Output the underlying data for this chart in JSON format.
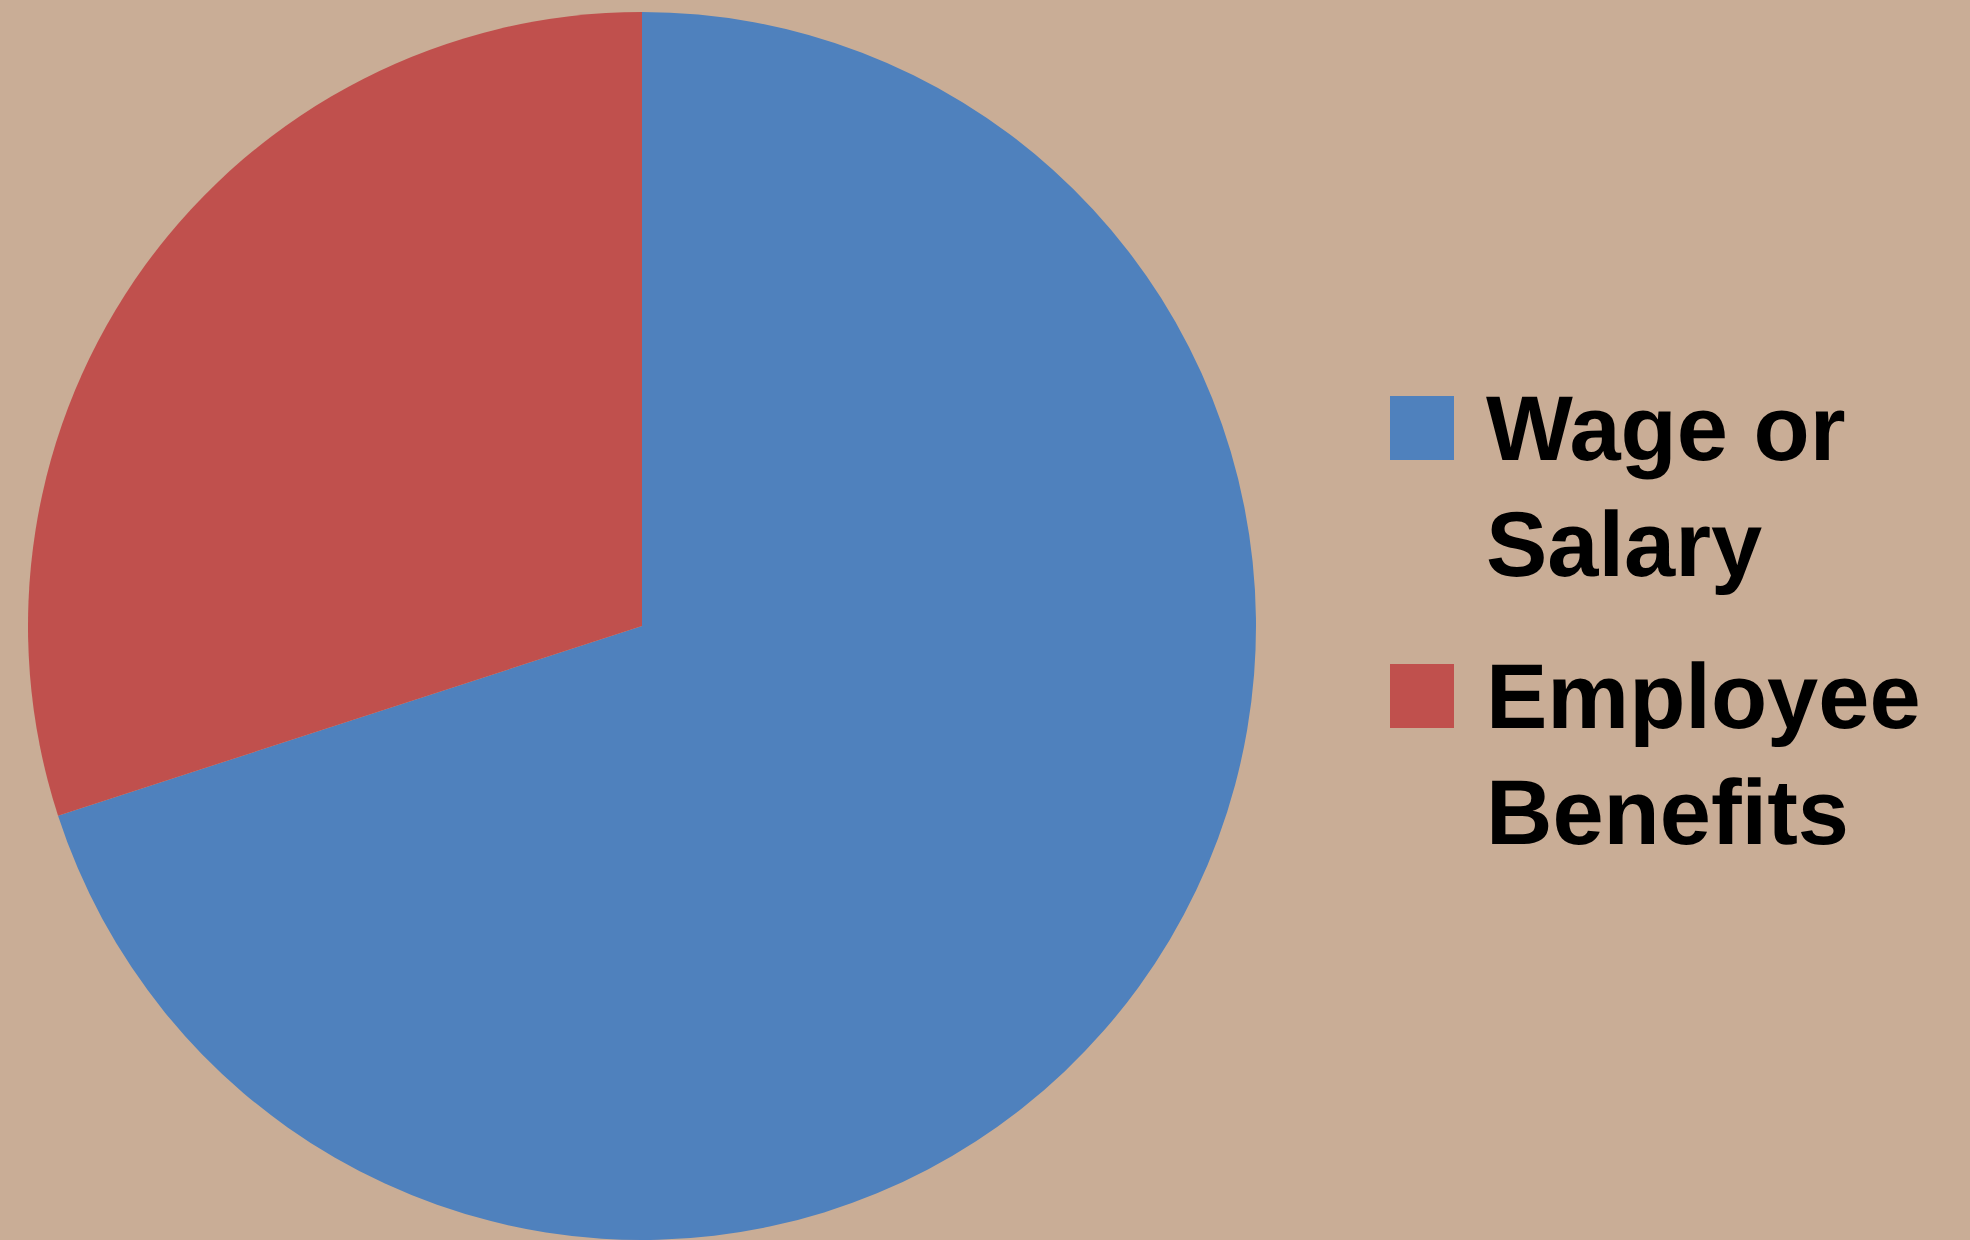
{
  "chart_data": {
    "type": "pie",
    "categories": [
      "Wage or Salary",
      "Employee Benefits"
    ],
    "values": [
      70,
      30
    ],
    "colors": [
      "#4f81bd",
      "#c0504d"
    ],
    "legend": "right"
  }
}
